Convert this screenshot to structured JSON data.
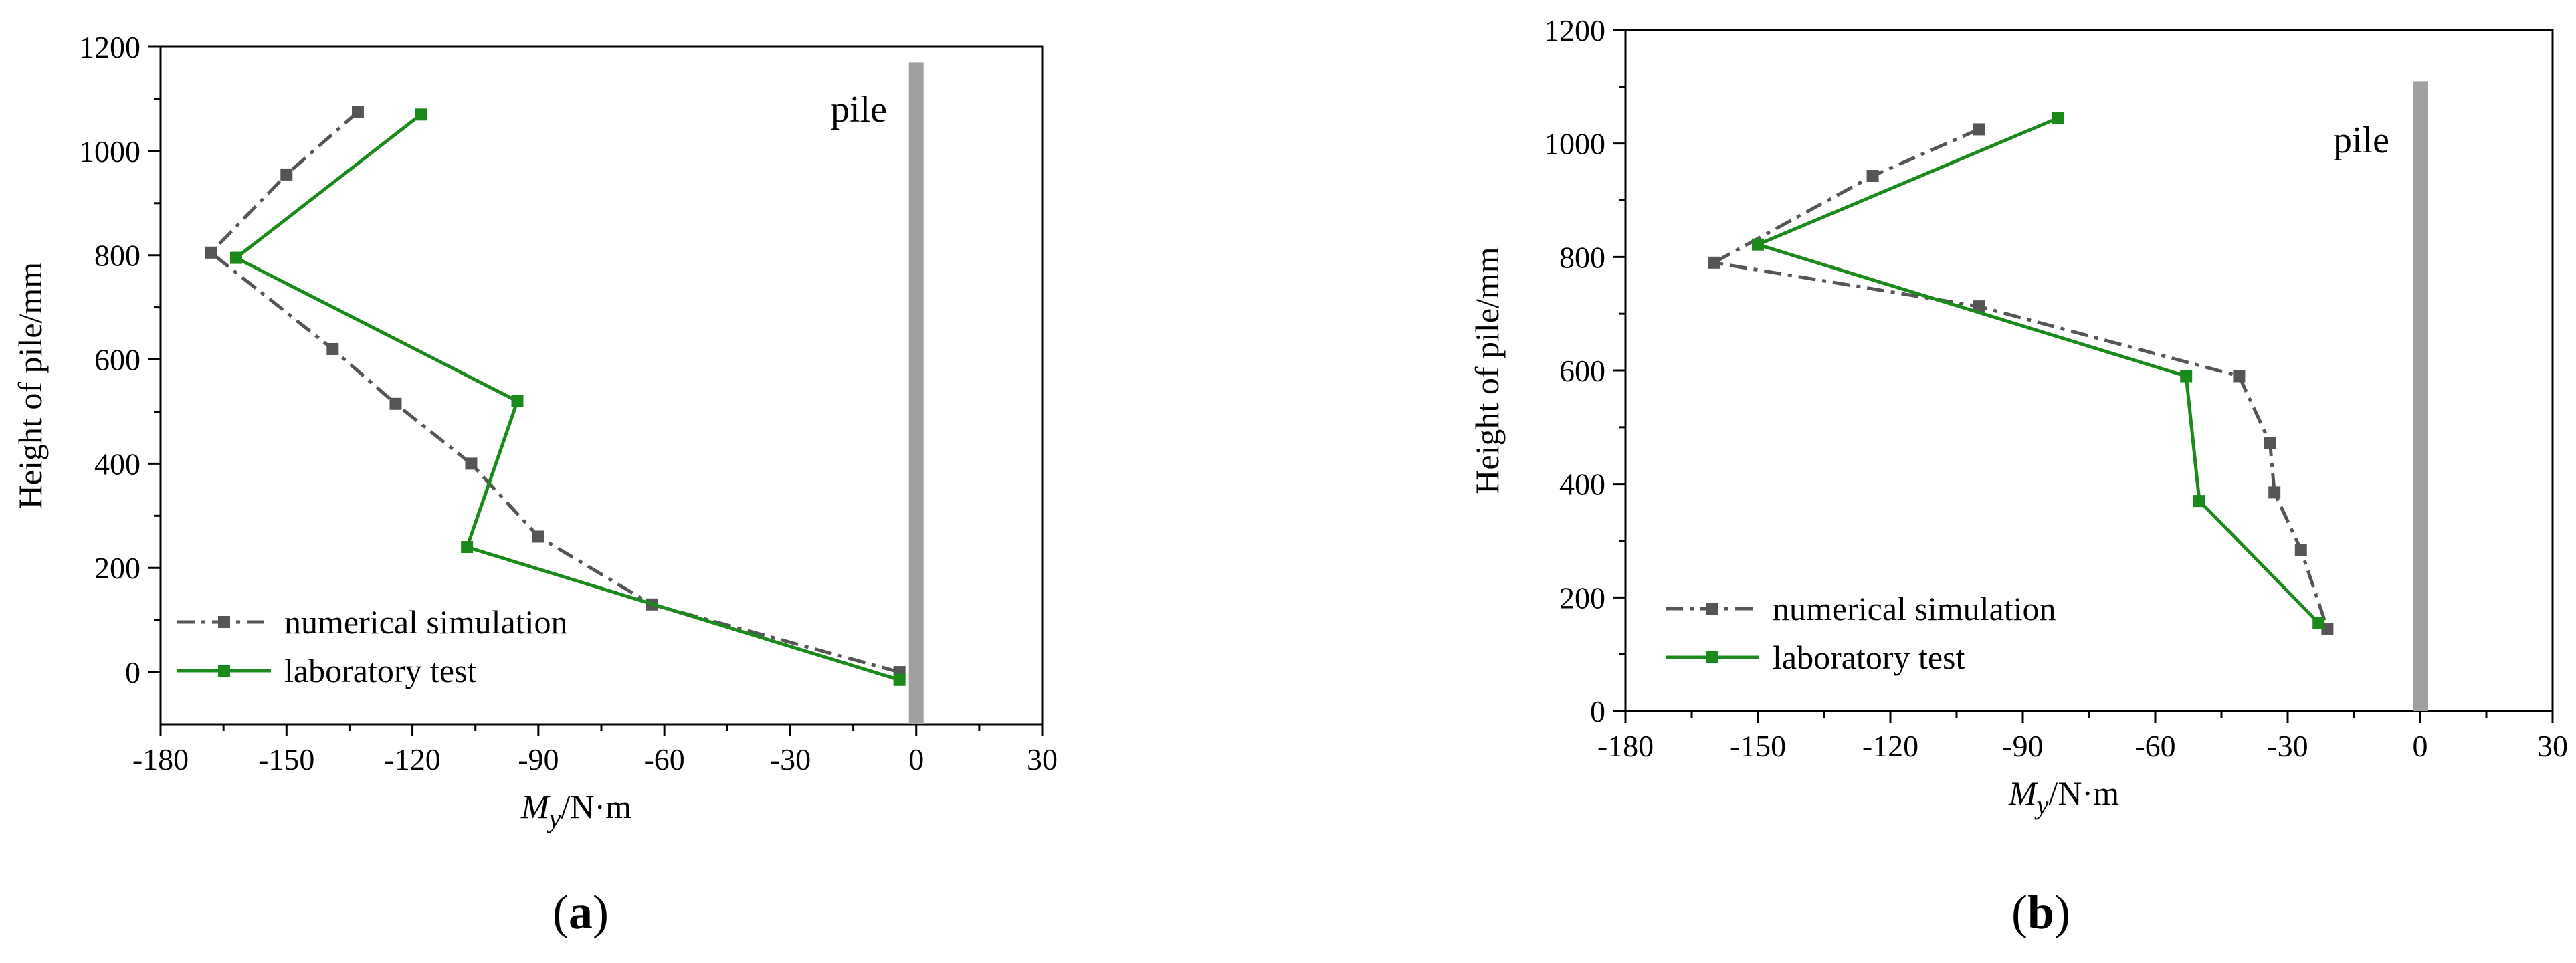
{
  "chart_data": [
    {
      "type": "line",
      "panel_label_open": "(",
      "panel_label_letter": "a",
      "panel_label_close": ")",
      "xlabel_main": "M",
      "xlabel_sub": "y",
      "xlabel_rest": "/N·m",
      "ylabel": "Height of pile/mm",
      "xlim": [
        -180,
        30
      ],
      "ylim": [
        -100,
        1200
      ],
      "xticks": [
        -180,
        -150,
        -120,
        -90,
        -60,
        -30,
        0,
        30
      ],
      "yticks": [
        0,
        200,
        400,
        600,
        800,
        1000,
        1200
      ],
      "pile_label": "pile",
      "pile_x": 0,
      "pile_range": [
        -100,
        1170
      ],
      "legend_position": "bottom-left",
      "series": [
        {
          "name": "numerical simulation",
          "style": "dash-dot",
          "color": "#555555",
          "x": [
            -133,
            -150,
            -168,
            -139,
            -124,
            -106,
            -90,
            -63,
            -4
          ],
          "y": [
            1075,
            955,
            805,
            620,
            515,
            400,
            260,
            130,
            0
          ]
        },
        {
          "name": "laboratory test",
          "style": "solid",
          "color": "#1a8a1a",
          "x": [
            -118,
            -162,
            -95,
            -107,
            -4
          ],
          "y": [
            1070,
            795,
            520,
            240,
            -15
          ]
        }
      ]
    },
    {
      "type": "line",
      "panel_label_open": "(",
      "panel_label_letter": "b",
      "panel_label_close": ")",
      "xlabel_main": "M",
      "xlabel_sub": "y",
      "xlabel_rest": "/N·m",
      "ylabel": "Height of pile/mm",
      "xlim": [
        -180,
        30
      ],
      "ylim": [
        0,
        1200
      ],
      "xticks": [
        -180,
        -150,
        -120,
        -90,
        -60,
        -30,
        0,
        30
      ],
      "yticks": [
        0,
        200,
        400,
        600,
        800,
        1000,
        1200
      ],
      "pile_label": "pile",
      "pile_x": 0,
      "pile_range": [
        0,
        1110
      ],
      "legend_position": "bottom-left",
      "series": [
        {
          "name": "numerical simulation",
          "style": "dash-dot",
          "color": "#555555",
          "x": [
            -100,
            -124,
            -160,
            -100,
            -41,
            -34,
            -33,
            -27,
            -21
          ],
          "y": [
            1025,
            943,
            790,
            713,
            590,
            472,
            385,
            284,
            145
          ]
        },
        {
          "name": "laboratory test",
          "style": "solid",
          "color": "#1a8a1a",
          "x": [
            -82,
            -150,
            -53,
            -50,
            -23
          ],
          "y": [
            1045,
            822,
            590,
            370,
            155
          ]
        }
      ]
    }
  ]
}
